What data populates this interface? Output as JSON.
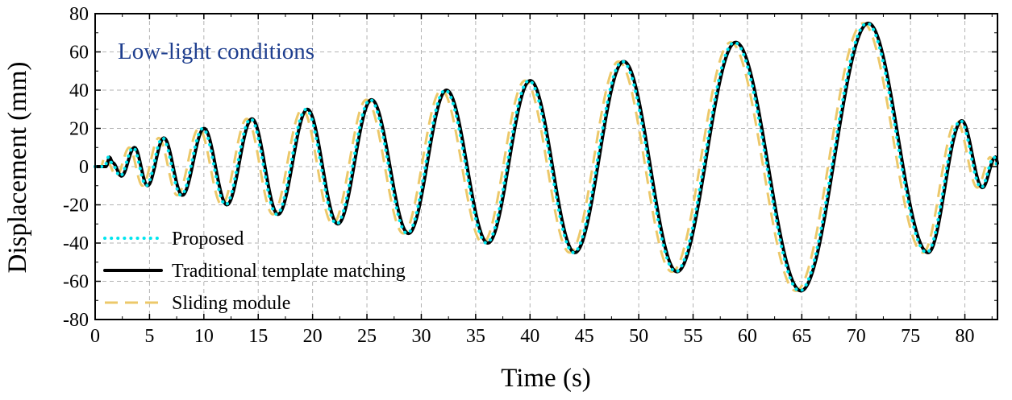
{
  "chart_data": {
    "type": "line",
    "title": "",
    "xlabel": "Time (s)",
    "ylabel": "Displacement (mm)",
    "xlim": [
      0,
      83
    ],
    "ylim": [
      -80,
      80
    ],
    "xticks": [
      0,
      5,
      10,
      15,
      20,
      25,
      30,
      35,
      40,
      45,
      50,
      55,
      60,
      65,
      70,
      75,
      80
    ],
    "yticks": [
      80,
      60,
      40,
      20,
      0,
      -20,
      -40,
      -60,
      -80
    ],
    "grid": true,
    "legend_position": "bottom-left",
    "annotation": {
      "text": "Low-light conditions",
      "color": "#1f3f8f"
    },
    "extrema": {
      "t": [
        0,
        0.9,
        1.2,
        1.5,
        2.3,
        3.5,
        4.7,
        6.2,
        7.9,
        9.9,
        12.0,
        14.3,
        16.7,
        19.4,
        22.2,
        25.3,
        28.7,
        32.2,
        36.0,
        39.9,
        44.0,
        48.5,
        53.4,
        58.8,
        64.8,
        71.0,
        76.5,
        79.6,
        81.5,
        82.7,
        83
      ],
      "y": [
        0,
        0,
        5,
        2,
        -5,
        10,
        -10,
        15,
        -15,
        20,
        -20,
        25,
        -25,
        30,
        -30,
        35,
        -35,
        40,
        -40,
        45,
        -45,
        55,
        -55,
        65,
        -65,
        75,
        -45,
        24,
        -11,
        5,
        0
      ]
    },
    "series": [
      {
        "name": "Proposed",
        "color": "#00e5ee",
        "style": "dotted",
        "offset": 0
      },
      {
        "name": "Traditional template matching",
        "color": "#000000",
        "style": "solid",
        "offset": 0.12
      },
      {
        "name": "Sliding module",
        "color": "#ecc86a",
        "style": "dashed",
        "offset": -0.35
      }
    ]
  }
}
